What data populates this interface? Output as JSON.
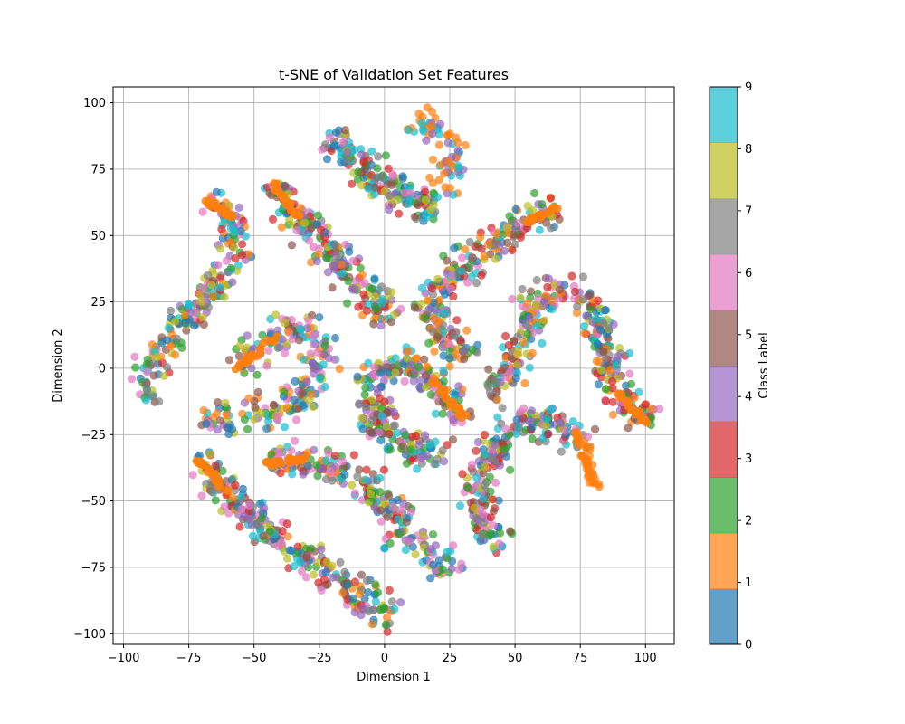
{
  "chart_data": {
    "type": "scatter",
    "title": "t-SNE of Validation Set Features",
    "xlabel": "Dimension 1",
    "ylabel": "Dimension 2",
    "xlim": [
      -104,
      111
    ],
    "ylim": [
      -104,
      106
    ],
    "xticks": [
      -100,
      -75,
      -50,
      -25,
      0,
      25,
      50,
      75,
      100
    ],
    "yticks": [
      -100,
      -75,
      -50,
      -25,
      0,
      25,
      50,
      75,
      100
    ],
    "grid": true,
    "colorbar": {
      "label": "Class Label",
      "ticks": [
        0,
        1,
        2,
        3,
        4,
        5,
        6,
        7,
        8,
        9
      ],
      "colors": [
        "#1f77b4",
        "#ff7f0e",
        "#2ca02c",
        "#d62728",
        "#9467bd",
        "#8c564b",
        "#e377c2",
        "#7f7f7f",
        "#bcbd22",
        "#17becf"
      ]
    },
    "point_alpha": 0.7,
    "clusters": [
      {
        "name": "c1",
        "path": [
          [
            -18,
            90
          ],
          [
            -16,
            80
          ],
          [
            -8,
            75
          ],
          [
            0,
            70
          ],
          [
            5,
            66
          ],
          [
            12,
            62
          ],
          [
            20,
            61
          ]
        ],
        "classes": [
          0,
          2,
          3,
          4,
          5,
          6,
          7,
          8,
          9
        ],
        "n": 170
      },
      {
        "name": "c1-tail",
        "path": [
          [
            12,
            95
          ],
          [
            20,
            90
          ],
          [
            26,
            82
          ],
          [
            28,
            74
          ],
          [
            25,
            68
          ],
          [
            22,
            64
          ]
        ],
        "classes": [
          1,
          1,
          1,
          9,
          4
        ],
        "n": 70
      },
      {
        "name": "c2",
        "path": [
          [
            -43,
            70
          ],
          [
            -38,
            62
          ],
          [
            -30,
            54
          ],
          [
            -22,
            44
          ],
          [
            -15,
            38
          ],
          [
            -8,
            32
          ],
          [
            -2,
            24
          ],
          [
            2,
            18
          ]
        ],
        "classes": [
          1,
          0,
          2,
          3,
          4,
          5,
          6,
          7,
          8,
          9
        ],
        "n": 220
      },
      {
        "name": "c3",
        "path": [
          [
            -68,
            63
          ],
          [
            -60,
            58
          ],
          [
            -55,
            50
          ],
          [
            -58,
            40
          ],
          [
            -62,
            32
          ],
          [
            -70,
            26
          ],
          [
            -77,
            18
          ],
          [
            -85,
            8
          ],
          [
            -90,
            -5
          ],
          [
            -91,
            -12
          ]
        ],
        "classes": [
          1,
          0,
          2,
          3,
          4,
          5,
          6,
          7,
          8,
          9
        ],
        "n": 220
      },
      {
        "name": "c4",
        "path": [
          [
            -56,
            0
          ],
          [
            -48,
            8
          ],
          [
            -40,
            13
          ],
          [
            -32,
            16
          ],
          [
            -25,
            12
          ],
          [
            -25,
            2
          ],
          [
            -28,
            -8
          ],
          [
            -35,
            -14
          ],
          [
            -45,
            -17
          ],
          [
            -55,
            -18
          ],
          [
            -65,
            -19
          ],
          [
            -70,
            -19
          ]
        ],
        "classes": [
          1,
          0,
          2,
          4,
          6,
          8,
          9,
          5
        ],
        "n": 230
      },
      {
        "name": "c5",
        "path": [
          [
            -72,
            -34
          ],
          [
            -65,
            -42
          ],
          [
            -57,
            -50
          ],
          [
            -50,
            -57
          ],
          [
            -42,
            -63
          ],
          [
            -35,
            -68
          ],
          [
            -27,
            -74
          ],
          [
            -20,
            -79
          ],
          [
            -12,
            -84
          ],
          [
            -5,
            -88
          ],
          [
            2,
            -92
          ],
          [
            5,
            -94
          ]
        ],
        "classes": [
          1,
          0,
          2,
          3,
          4,
          5,
          6,
          7,
          8,
          9
        ],
        "n": 260
      },
      {
        "name": "c6",
        "path": [
          [
            -46,
            -36
          ],
          [
            -38,
            -34
          ],
          [
            -30,
            -35
          ],
          [
            -22,
            -37
          ],
          [
            -15,
            -40
          ],
          [
            -8,
            -43
          ],
          [
            -2,
            -47
          ],
          [
            2,
            -52
          ],
          [
            5,
            -58
          ],
          [
            8,
            -60
          ]
        ],
        "classes": [
          1,
          0,
          2,
          3,
          4,
          5,
          6,
          7,
          8,
          9
        ],
        "n": 170
      },
      {
        "name": "c7",
        "path": [
          [
            -8,
            -3
          ],
          [
            -5,
            -12
          ],
          [
            -3,
            -18
          ],
          [
            0,
            -25
          ],
          [
            6,
            -28
          ],
          [
            12,
            -30
          ],
          [
            18,
            -31
          ],
          [
            24,
            -34
          ]
        ],
        "classes": [
          0,
          2,
          3,
          4,
          5,
          6,
          7,
          8,
          9
        ],
        "n": 150
      },
      {
        "name": "c7b",
        "path": [
          [
            2,
            -62
          ],
          [
            5,
            -65
          ],
          [
            12,
            -66
          ],
          [
            20,
            -70
          ],
          [
            24,
            -78
          ]
        ],
        "classes": [
          0,
          2,
          4,
          6,
          8,
          9
        ],
        "n": 60
      },
      {
        "name": "c8",
        "path": [
          [
            -5,
            -5
          ],
          [
            0,
            0
          ],
          [
            6,
            2
          ],
          [
            12,
            0
          ],
          [
            18,
            -3
          ],
          [
            22,
            -10
          ],
          [
            28,
            -15
          ],
          [
            31,
            -19
          ]
        ],
        "classes": [
          9,
          1,
          0,
          2,
          4,
          6,
          8,
          5
        ],
        "n": 130
      },
      {
        "name": "c9",
        "path": [
          [
            66,
            61
          ],
          [
            58,
            57
          ],
          [
            50,
            52
          ],
          [
            42,
            48
          ],
          [
            35,
            42
          ],
          [
            28,
            36
          ],
          [
            22,
            31
          ],
          [
            18,
            25
          ],
          [
            18,
            18
          ],
          [
            25,
            12
          ],
          [
            30,
            6
          ],
          [
            32,
            3
          ]
        ],
        "classes": [
          1,
          0,
          2,
          3,
          4,
          5,
          6,
          7,
          8,
          9
        ],
        "n": 260
      },
      {
        "name": "c10",
        "path": [
          [
            40,
            -10
          ],
          [
            45,
            -5
          ],
          [
            50,
            0
          ],
          [
            53,
            10
          ],
          [
            55,
            20
          ],
          [
            60,
            27
          ],
          [
            68,
            30
          ],
          [
            76,
            27
          ],
          [
            82,
            18
          ],
          [
            85,
            8
          ],
          [
            85,
            -3
          ],
          [
            88,
            -7
          ],
          [
            94,
            -13
          ],
          [
            101,
            -21
          ]
        ],
        "classes": [
          0,
          2,
          3,
          4,
          5,
          6,
          7,
          8,
          9,
          1
        ],
        "n": 320
      },
      {
        "name": "c11",
        "path": [
          [
            78,
            -30
          ],
          [
            72,
            -25
          ],
          [
            65,
            -21
          ],
          [
            58,
            -20
          ],
          [
            50,
            -22
          ],
          [
            44,
            -27
          ],
          [
            38,
            -38
          ],
          [
            36,
            -50
          ],
          [
            38,
            -57
          ],
          [
            42,
            -64
          ],
          [
            47,
            -67
          ]
        ],
        "classes": [
          0,
          2,
          3,
          4,
          5,
          6,
          7,
          8,
          9
        ],
        "n": 240
      },
      {
        "name": "c11-tail",
        "path": [
          [
            73,
            -25
          ],
          [
            76,
            -30
          ],
          [
            79,
            -38
          ],
          [
            81,
            -44
          ]
        ],
        "classes": [
          1,
          1,
          1
        ],
        "n": 45
      }
    ]
  }
}
